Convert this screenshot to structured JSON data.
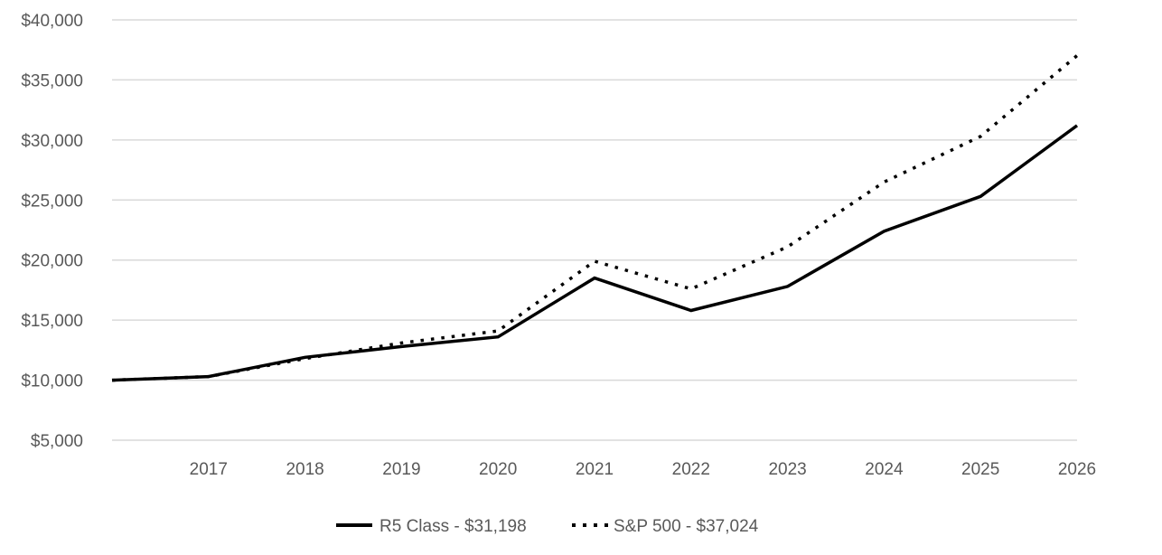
{
  "chart_data": {
    "type": "line",
    "title": "",
    "xlabel": "",
    "ylabel": "",
    "x": [
      "2016",
      "2017",
      "2018",
      "2019",
      "2020",
      "2021",
      "2022",
      "2023",
      "2024",
      "2025",
      "2026"
    ],
    "x_tick_labels": [
      "2017",
      "2018",
      "2019",
      "2020",
      "2021",
      "2022",
      "2023",
      "2024",
      "2025",
      "2026"
    ],
    "ylim": [
      5000,
      40000
    ],
    "y_ticks": [
      5000,
      10000,
      15000,
      20000,
      25000,
      30000,
      35000,
      40000
    ],
    "y_tick_labels": [
      "$5,000",
      "$10,000",
      "$15,000",
      "$20,000",
      "$25,000",
      "$30,000",
      "$35,000",
      "$40,000"
    ],
    "grid": true,
    "legend_position": "bottom",
    "series": [
      {
        "name": "R5 Class - $31,198",
        "style": "solid",
        "color": "#000000",
        "values": [
          10000,
          10300,
          11900,
          12800,
          13600,
          18500,
          15800,
          17800,
          22400,
          25300,
          31198
        ]
      },
      {
        "name": "S&P 500 - $37,024",
        "style": "dotted",
        "color": "#000000",
        "values": [
          10000,
          10300,
          11800,
          13100,
          14100,
          19900,
          17600,
          21100,
          26500,
          30300,
          37024
        ]
      }
    ]
  }
}
